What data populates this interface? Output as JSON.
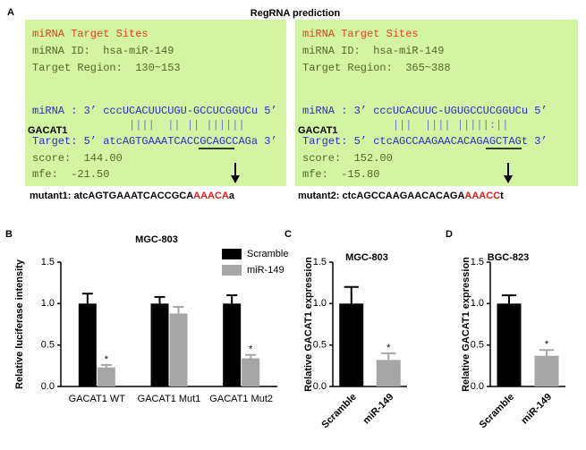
{
  "panel_a": {
    "letter": "A",
    "title": "RegRNA prediction",
    "boxes": [
      {
        "heading": "miRNA Target Sites",
        "mirna_id": "miRNA ID:  hsa-miR-149",
        "target_region": "Target Region:  130~153",
        "mirna_line": "miRNA : 3’ cccUCACUUCUGU-GCCUCGGUCu 5’",
        "pairing": "               ||||  || || ||||||",
        "gene": "GACAT1",
        "target_line": "Target: 5’ atcAGTGAAATCACCGCAGCCAGa 3’",
        "score": "score:  144.00",
        "mfe": "mfe:  -21.50",
        "mutant": {
          "label": "mutant1:",
          "prefix": "atcAGTGAAATCACCGCA",
          "mutation": "AAACA",
          "suffix": "a"
        }
      },
      {
        "heading": "miRNA Target Sites",
        "mirna_id": "miRNA ID:  hsa-miR-149",
        "target_region": "Target Region:  365~388",
        "mirna_line": "miRNA : 3’ cccUCACUUC-UGUGCCUCGGUCu 5’",
        "pairing": "              |||  |||| |||||:||",
        "gene": "GACAT1",
        "target_line": "Target: 5’ ctcAGCCAAGAACACAGAGCTAGt 3’",
        "score": "score:  152.00",
        "mfe": "mfe:  -15.80",
        "mutant": {
          "label": "mutant2:",
          "prefix": "ctcAGCCAAGAACACAGA",
          "mutation": "AAACC",
          "suffix": "t"
        }
      }
    ]
  },
  "chart_data": [
    {
      "type": "bar",
      "panel": "B",
      "title": "MGC-803",
      "y_label": "Relative luciferase intensity",
      "categories": [
        "GACAT1 WT",
        "GACAT1 Mut1",
        "GACAT1 Mut2"
      ],
      "series": [
        {
          "name": "Scramble",
          "color": "#000000",
          "values": [
            1.0,
            1.0,
            1.0
          ],
          "errors": [
            0.12,
            0.08,
            0.1
          ],
          "significance": [
            null,
            null,
            null
          ]
        },
        {
          "name": "miR-149",
          "color": "#a6a6a6",
          "values": [
            0.23,
            0.88,
            0.34
          ],
          "errors": [
            0.03,
            0.08,
            0.04
          ],
          "significance": [
            "*",
            null,
            "*"
          ]
        }
      ],
      "ylim": [
        0,
        1.5
      ],
      "yticks": [
        {
          "value": 0,
          "label": "0.0"
        },
        0.5,
        {
          "value": 1,
          "label": "1.0"
        },
        1.5
      ],
      "legend": "top-right"
    },
    {
      "type": "bar",
      "panel": "C",
      "title": "MGC-803",
      "y_label": "Relative GACAT1 expression",
      "categories": [
        "Scramble",
        "miR-149"
      ],
      "values": [
        1.0,
        0.32
      ],
      "errors": [
        0.2,
        0.08
      ],
      "colors": [
        "#000000",
        "#a6a6a6"
      ],
      "significance": [
        null,
        "*"
      ],
      "ylim": [
        0,
        1.5
      ],
      "yticks": [
        {
          "value": 0,
          "label": "0.0"
        },
        0.5,
        {
          "value": 1,
          "label": "1.0"
        },
        1.5
      ]
    },
    {
      "type": "bar",
      "panel": "D",
      "title": "BGC-823",
      "y_label": "Relative GACAT1 expression",
      "categories": [
        "Scramble",
        "miR-149"
      ],
      "values": [
        1.0,
        0.37
      ],
      "errors": [
        0.1,
        0.07
      ],
      "colors": [
        "#000000",
        "#a6a6a6"
      ],
      "significance": [
        null,
        "*"
      ],
      "ylim": [
        0,
        1.5
      ],
      "yticks": [
        {
          "value": 0,
          "label": "0.0"
        },
        0.5,
        {
          "value": 1,
          "label": "1.0"
        },
        1.5
      ]
    }
  ]
}
